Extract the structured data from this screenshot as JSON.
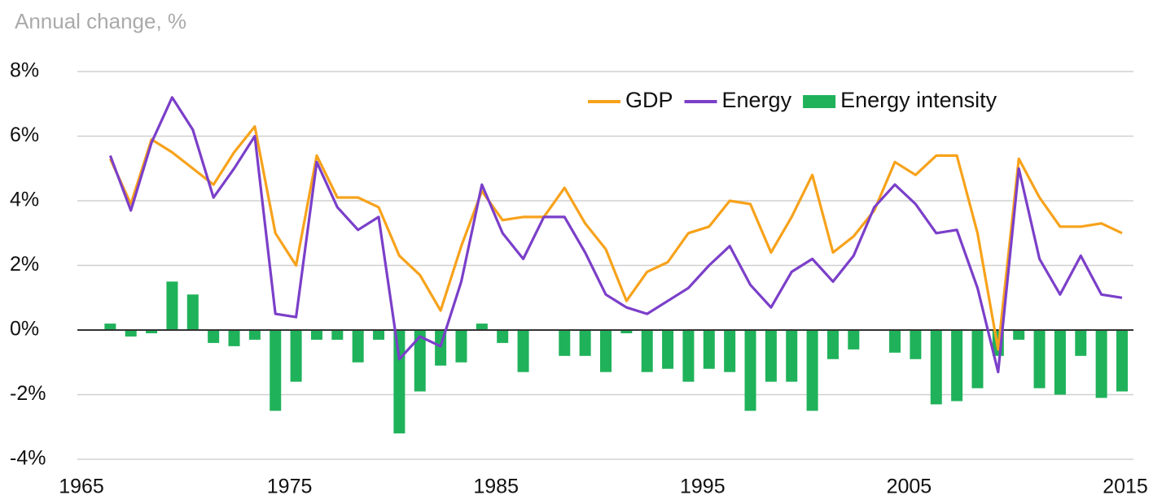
{
  "chart_data": {
    "type": "line-bar",
    "subtitle": "Annual change, %",
    "x": [
      1966,
      1967,
      1968,
      1969,
      1970,
      1971,
      1972,
      1973,
      1974,
      1975,
      1976,
      1977,
      1978,
      1979,
      1980,
      1981,
      1982,
      1983,
      1984,
      1985,
      1986,
      1987,
      1988,
      1989,
      1990,
      1991,
      1992,
      1993,
      1994,
      1995,
      1996,
      1997,
      1998,
      1999,
      2000,
      2001,
      2002,
      2003,
      2004,
      2005,
      2006,
      2007,
      2008,
      2009,
      2010,
      2011,
      2012,
      2013,
      2014,
      2015
    ],
    "series": [
      {
        "name": "GDP",
        "type": "line",
        "color": "#f7a21b",
        "values": [
          5.3,
          3.9,
          5.9,
          5.5,
          5.0,
          4.5,
          5.5,
          6.3,
          3.0,
          2.0,
          5.4,
          4.1,
          4.1,
          3.8,
          2.3,
          1.7,
          0.6,
          2.6,
          4.3,
          3.4,
          3.5,
          3.5,
          4.4,
          3.3,
          2.5,
          0.9,
          1.8,
          2.1,
          3.0,
          3.2,
          4.0,
          3.9,
          2.4,
          3.5,
          4.8,
          2.4,
          2.9,
          3.7,
          5.2,
          4.8,
          5.4,
          5.4,
          3.0,
          -0.6,
          5.3,
          4.1,
          3.2,
          3.2,
          3.3,
          3.0
        ]
      },
      {
        "name": "Energy",
        "type": "line",
        "color": "#7b3fc9",
        "values": [
          5.4,
          3.7,
          5.8,
          7.2,
          6.2,
          4.1,
          5.0,
          6.0,
          0.5,
          0.4,
          5.2,
          3.8,
          3.1,
          3.5,
          -0.9,
          -0.2,
          -0.5,
          1.5,
          4.5,
          3.0,
          2.2,
          3.5,
          3.5,
          2.4,
          1.1,
          0.7,
          0.5,
          0.9,
          1.3,
          2.0,
          2.6,
          1.4,
          0.7,
          1.8,
          2.2,
          1.5,
          2.3,
          3.8,
          4.5,
          3.9,
          3.0,
          3.1,
          1.3,
          -1.3,
          5.0,
          2.2,
          1.1,
          2.3,
          1.1,
          1.0
        ]
      },
      {
        "name": "Energy intensity",
        "type": "bar",
        "color": "#1fb25a",
        "values": [
          0.2,
          -0.2,
          -0.1,
          1.5,
          1.1,
          -0.4,
          -0.5,
          -0.3,
          -2.5,
          -1.6,
          -0.3,
          -0.3,
          -1.0,
          -0.3,
          -3.2,
          -1.9,
          -1.1,
          -1.0,
          0.2,
          -0.4,
          -1.3,
          0.0,
          -0.8,
          -0.8,
          -1.3,
          -0.1,
          -1.3,
          -1.2,
          -1.6,
          -1.2,
          -1.3,
          -2.5,
          -1.6,
          -1.6,
          -2.5,
          -0.9,
          -0.6,
          0.0,
          -0.7,
          -0.9,
          -2.3,
          -2.2,
          -1.8,
          -0.8,
          -0.3,
          -1.8,
          -2.0,
          -0.8,
          -2.1,
          -1.9
        ]
      }
    ],
    "xlim": [
      1965,
      2015
    ],
    "xticks": [
      1965,
      1975,
      1985,
      1995,
      2005,
      2015
    ],
    "ylim": [
      -4,
      8
    ],
    "yticks": [
      {
        "value": -4,
        "label": "-4%"
      },
      {
        "value": -2,
        "label": "-2%"
      },
      {
        "value": 0,
        "label": "0%"
      },
      {
        "value": 2,
        "label": "2%"
      },
      {
        "value": 4,
        "label": "4%"
      },
      {
        "value": 6,
        "label": "6%"
      },
      {
        "value": 8,
        "label": "8%"
      }
    ],
    "grid": true,
    "legend": "top-right"
  }
}
